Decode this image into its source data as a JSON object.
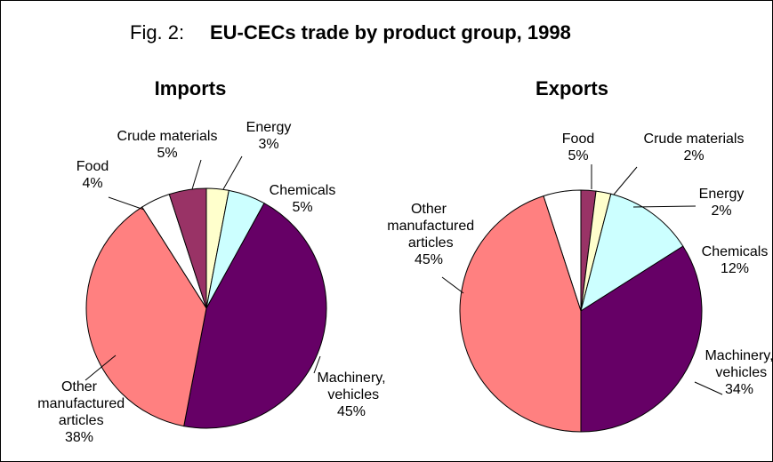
{
  "figure": {
    "label": "Fig. 2:",
    "title": "EU-CECs trade by product group, 1998"
  },
  "chart_data": [
    {
      "type": "pie",
      "title": "Imports",
      "categories": [
        "Food",
        "Crude materials",
        "Energy",
        "Chemicals",
        "Machinery, vehicles",
        "Other manufactured articles"
      ],
      "values": [
        4,
        5,
        3,
        5,
        45,
        38
      ],
      "value_labels": [
        "4%",
        "5%",
        "3%",
        "5%",
        "45%",
        "38%"
      ],
      "colors": [
        "#ffffff",
        "#993366",
        "#ffffcc",
        "#ccffff",
        "#660066",
        "#ff8080"
      ]
    },
    {
      "type": "pie",
      "title": "Exports",
      "categories": [
        "Food",
        "Crude materials",
        "Energy",
        "Chemicals",
        "Machinery, vehicles",
        "Other manufactured articles"
      ],
      "values": [
        5,
        2,
        2,
        12,
        34,
        45
      ],
      "value_labels": [
        "5%",
        "2%",
        "2%",
        "12%",
        "34%",
        "45%"
      ],
      "colors": [
        "#ffffff",
        "#993366",
        "#ffffcc",
        "#ccffff",
        "#660066",
        "#ff8080"
      ]
    }
  ]
}
